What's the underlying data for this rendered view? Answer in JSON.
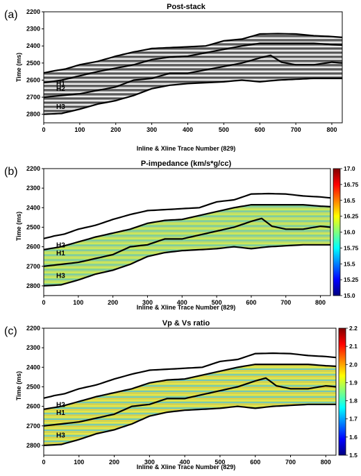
{
  "chart_data": [
    {
      "type": "heatmap",
      "panel_label": "(a)",
      "title": "Post-stack",
      "xlabel": "Inline & Xline Trace Number (829)",
      "ylabel": "Time (ms)",
      "xlim": [
        0,
        829
      ],
      "ylim": [
        2200,
        2850
      ],
      "y_inverted": true,
      "x_ticks": [
        0,
        100,
        200,
        300,
        400,
        500,
        600,
        700,
        800
      ],
      "y_ticks": [
        2200,
        2300,
        2400,
        2500,
        2600,
        2700,
        2800
      ],
      "horizon_labels": [
        "H1",
        "H2",
        "H3"
      ],
      "colormap": "grayscale",
      "colorbar": null
    },
    {
      "type": "heatmap",
      "panel_label": "(b)",
      "title": "P-impedance (km/s*g/cc)",
      "xlabel": "Inline & Xline Trace Number (829)",
      "ylabel": "Time (ms)",
      "xlim": [
        0,
        829
      ],
      "ylim": [
        2200,
        2850
      ],
      "y_inverted": true,
      "x_ticks": [
        0,
        100,
        200,
        300,
        400,
        500,
        600,
        700,
        800
      ],
      "y_ticks": [
        2200,
        2300,
        2400,
        2500,
        2600,
        2700,
        2800
      ],
      "horizon_labels": [
        "H1",
        "H2",
        "H3"
      ],
      "colormap": "jet",
      "colorbar": {
        "range": [
          15.0,
          17.0
        ],
        "ticks": [
          "17.0",
          "16.75",
          "16.5",
          "16.25",
          "16.0",
          "15.75",
          "15.5",
          "15.25",
          "15.0"
        ]
      }
    },
    {
      "type": "heatmap",
      "panel_label": "(c)",
      "title": "Vp & Vs ratio",
      "xlabel": "Inline & Xline Trace Number (829)",
      "ylabel": "Time (ms)",
      "xlim": [
        0,
        829
      ],
      "ylim": [
        2200,
        2850
      ],
      "y_inverted": true,
      "x_ticks": [
        0,
        100,
        200,
        300,
        400,
        500,
        600,
        700,
        800
      ],
      "y_ticks": [
        2200,
        2300,
        2400,
        2500,
        2600,
        2700,
        2800
      ],
      "horizon_labels": [
        "H1",
        "H2",
        "H3"
      ],
      "colormap": "jet",
      "colorbar": {
        "range": [
          1.5,
          2.2
        ],
        "ticks": [
          "2.2",
          "2.1",
          "2.0",
          "1.9",
          "1.8",
          "1.7",
          "1.6",
          "1.5"
        ]
      }
    }
  ],
  "horizons": {
    "top": {
      "x": [
        0,
        30,
        60,
        100,
        150,
        200,
        250,
        300,
        350,
        400,
        450,
        500,
        550,
        600,
        650,
        700,
        750,
        800,
        829
      ],
      "y": [
        2558,
        2545,
        2535,
        2510,
        2490,
        2460,
        2435,
        2415,
        2410,
        2405,
        2400,
        2370,
        2360,
        2330,
        2328,
        2330,
        2340,
        2345,
        2350
      ]
    },
    "h1": {
      "x": [
        0,
        50,
        100,
        150,
        200,
        250,
        300,
        350,
        400,
        450,
        500,
        550,
        600,
        650,
        700,
        750,
        800,
        829
      ],
      "y": [
        2615,
        2600,
        2575,
        2550,
        2530,
        2510,
        2480,
        2465,
        2460,
        2440,
        2420,
        2400,
        2385,
        2385,
        2385,
        2385,
        2392,
        2395
      ]
    },
    "h2": {
      "x": [
        0,
        50,
        100,
        150,
        200,
        250,
        300,
        350,
        400,
        450,
        500,
        550,
        600,
        630,
        660,
        700,
        750,
        800,
        829
      ],
      "y": [
        2700,
        2690,
        2680,
        2660,
        2640,
        2600,
        2590,
        2560,
        2560,
        2540,
        2520,
        2500,
        2470,
        2455,
        2495,
        2510,
        2510,
        2495,
        2500
      ]
    },
    "base": {
      "x": [
        0,
        50,
        100,
        150,
        200,
        250,
        300,
        350,
        400,
        450,
        500,
        550,
        600,
        650,
        700,
        750,
        800,
        829
      ],
      "y": [
        2800,
        2795,
        2770,
        2740,
        2720,
        2690,
        2650,
        2630,
        2620,
        2615,
        2610,
        2600,
        2610,
        2600,
        2595,
        2590,
        2590,
        2590
      ]
    }
  },
  "colors": {
    "frame": "#000000",
    "horizon": "#000000",
    "text": "#000000"
  }
}
